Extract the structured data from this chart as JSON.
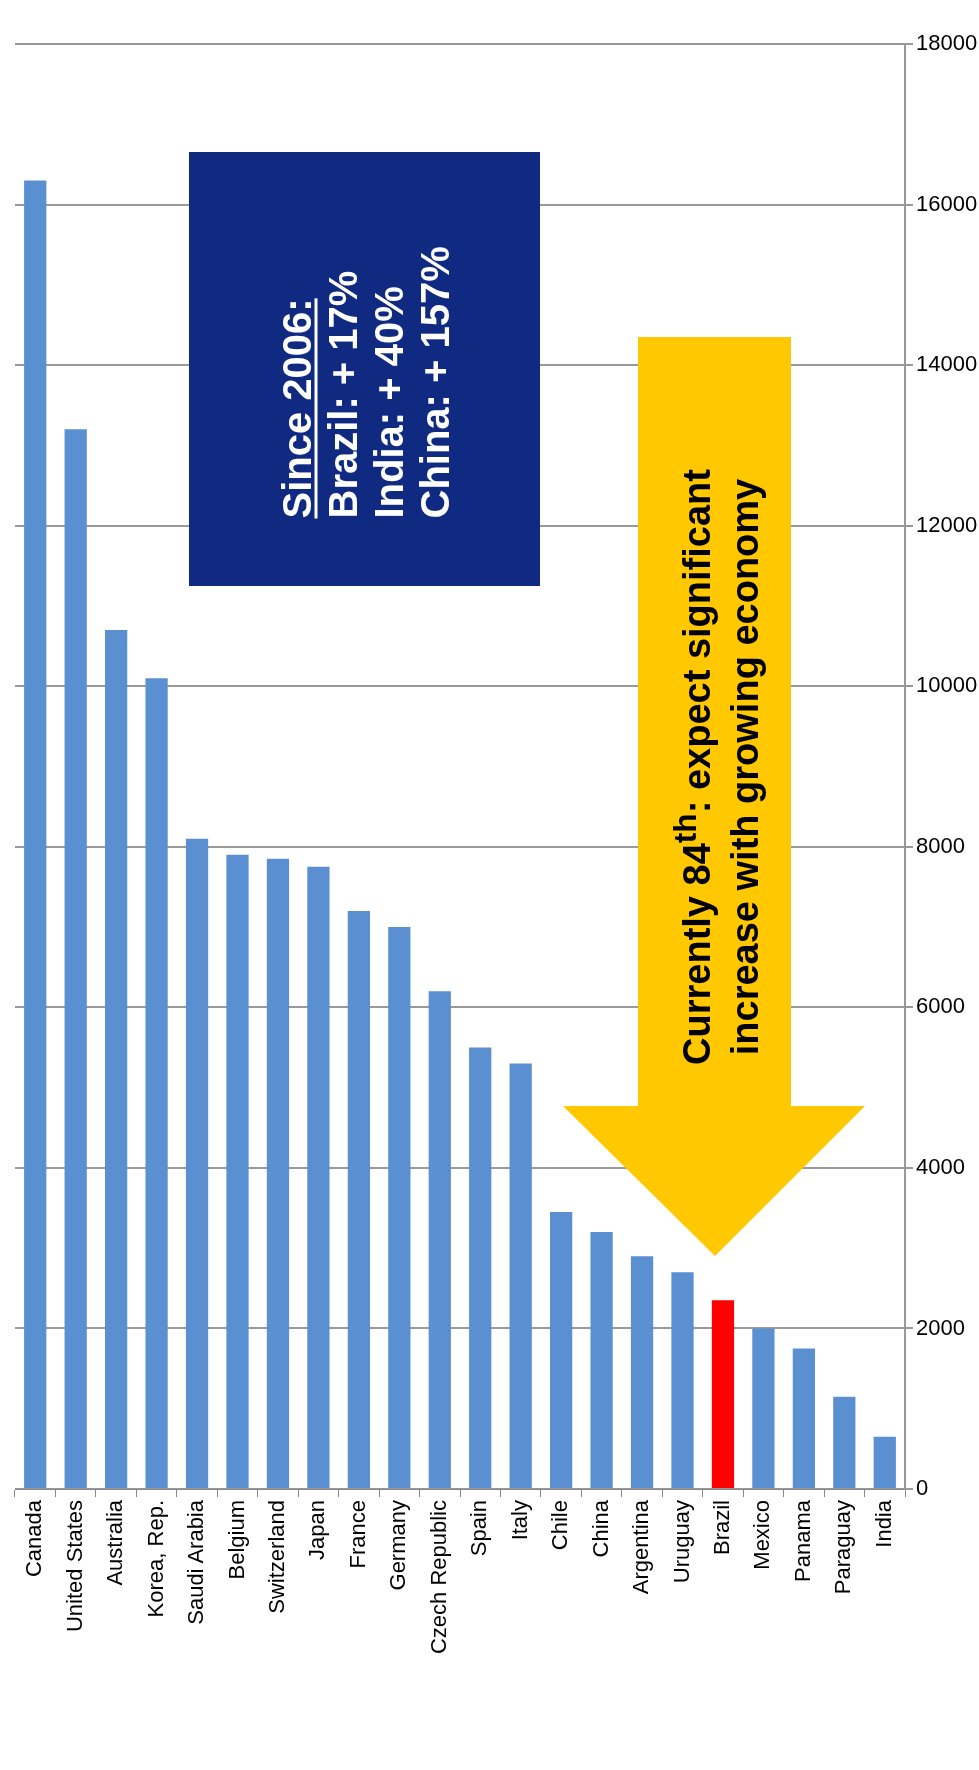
{
  "chart_data": {
    "type": "bar",
    "categories": [
      "Canada",
      "United States",
      "Australia",
      "Korea, Rep.",
      "Saudi Arabia",
      "Belgium",
      "Switzerland",
      "Japan",
      "France",
      "Germany",
      "Czech Republic",
      "Spain",
      "Italy",
      "Chile",
      "China",
      "Argentina",
      "Uruguay",
      "Brazil",
      "Mexico",
      "Panama",
      "Paraguay",
      "India"
    ],
    "values": [
      16300,
      13200,
      10700,
      10100,
      8100,
      7900,
      7850,
      7750,
      7200,
      7000,
      6200,
      5500,
      5300,
      3450,
      3200,
      2900,
      2700,
      2350,
      2000,
      1750,
      1150,
      650
    ],
    "colors": [
      "#5a8fd2",
      "#5a8fd2",
      "#5a8fd2",
      "#5a8fd2",
      "#5a8fd2",
      "#5a8fd2",
      "#5a8fd2",
      "#5a8fd2",
      "#5a8fd2",
      "#5a8fd2",
      "#5a8fd2",
      "#5a8fd2",
      "#5a8fd2",
      "#5a8fd2",
      "#5a8fd2",
      "#5a8fd2",
      "#5a8fd2",
      "#ff0000",
      "#5a8fd2",
      "#5a8fd2",
      "#5a8fd2",
      "#5a8fd2"
    ],
    "ylim": [
      0,
      18000
    ],
    "yticks": [
      0,
      2000,
      4000,
      6000,
      8000,
      10000,
      12000,
      14000,
      16000,
      18000
    ],
    "grid": "y",
    "annotations": [
      "Since 2006:",
      "Brazil: + 17%",
      "India: + 40%",
      "China: + 157%",
      "Currently 84$^{th}$: expect significant increase with growing economy"
    ]
  }
}
